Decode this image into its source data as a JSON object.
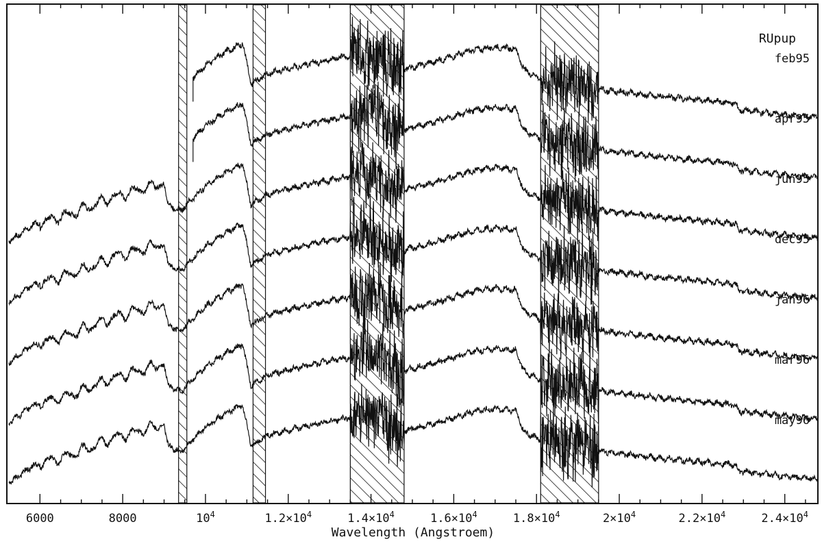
{
  "chart_data": {
    "type": "line",
    "title": "",
    "object_label": "RUpup",
    "xlabel": "Wavelength (Angstroem)",
    "ylabel": "",
    "xlim": [
      5200,
      24800
    ],
    "x_scale": "linear",
    "grid": false,
    "legend": "none",
    "x_ticks": [
      {
        "value": 6000,
        "label": "6000"
      },
      {
        "value": 8000,
        "label": "8000"
      },
      {
        "value": 10000,
        "label": "10",
        "sup": "4"
      },
      {
        "value": 12000,
        "label": "1.2×10",
        "sup": "4"
      },
      {
        "value": 14000,
        "label": "1.4×10",
        "sup": "4"
      },
      {
        "value": 16000,
        "label": "1.6×10",
        "sup": "4"
      },
      {
        "value": 18000,
        "label": "1.8×10",
        "sup": "4"
      },
      {
        "value": 20000,
        "label": "2×10",
        "sup": "4"
      },
      {
        "value": 22000,
        "label": "2.2×10",
        "sup": "4"
      },
      {
        "value": 24000,
        "label": "2.4×10",
        "sup": "4"
      }
    ],
    "hatched_regions": [
      [
        9350,
        9550
      ],
      [
        11150,
        11450
      ],
      [
        13500,
        14800
      ],
      [
        18100,
        19500
      ]
    ],
    "continuum_shape": {
      "x": [
        5250,
        5800,
        6800,
        7800,
        8600,
        9000,
        9100,
        9400,
        10000,
        10500,
        10900,
        11100,
        11500,
        12500,
        13300,
        14000,
        14700,
        15500,
        16500,
        17000,
        17500,
        17700,
        18200,
        19000,
        19600,
        21000,
        22800,
        22900,
        24000,
        24800
      ],
      "y": [
        0.0,
        0.2,
        0.35,
        0.55,
        0.66,
        0.72,
        0.45,
        0.38,
        0.68,
        0.85,
        0.95,
        0.45,
        0.58,
        0.7,
        0.78,
        0.83,
        0.62,
        0.72,
        0.87,
        0.9,
        0.88,
        0.62,
        0.5,
        0.45,
        0.38,
        0.3,
        0.22,
        0.14,
        0.08,
        0.05
      ]
    },
    "series": [
      {
        "name": "feb95",
        "x_start": 9700,
        "offset": 6
      },
      {
        "name": "apr95",
        "x_start": 9700,
        "offset": 5
      },
      {
        "name": "jun95",
        "x_start": 5250,
        "offset": 4
      },
      {
        "name": "dec95",
        "x_start": 5250,
        "offset": 3
      },
      {
        "name": "jan96",
        "x_start": 5250,
        "offset": 2
      },
      {
        "name": "mar96",
        "x_start": 5250,
        "offset": 1
      },
      {
        "name": "may96",
        "x_start": 5250,
        "offset": 0
      }
    ]
  }
}
